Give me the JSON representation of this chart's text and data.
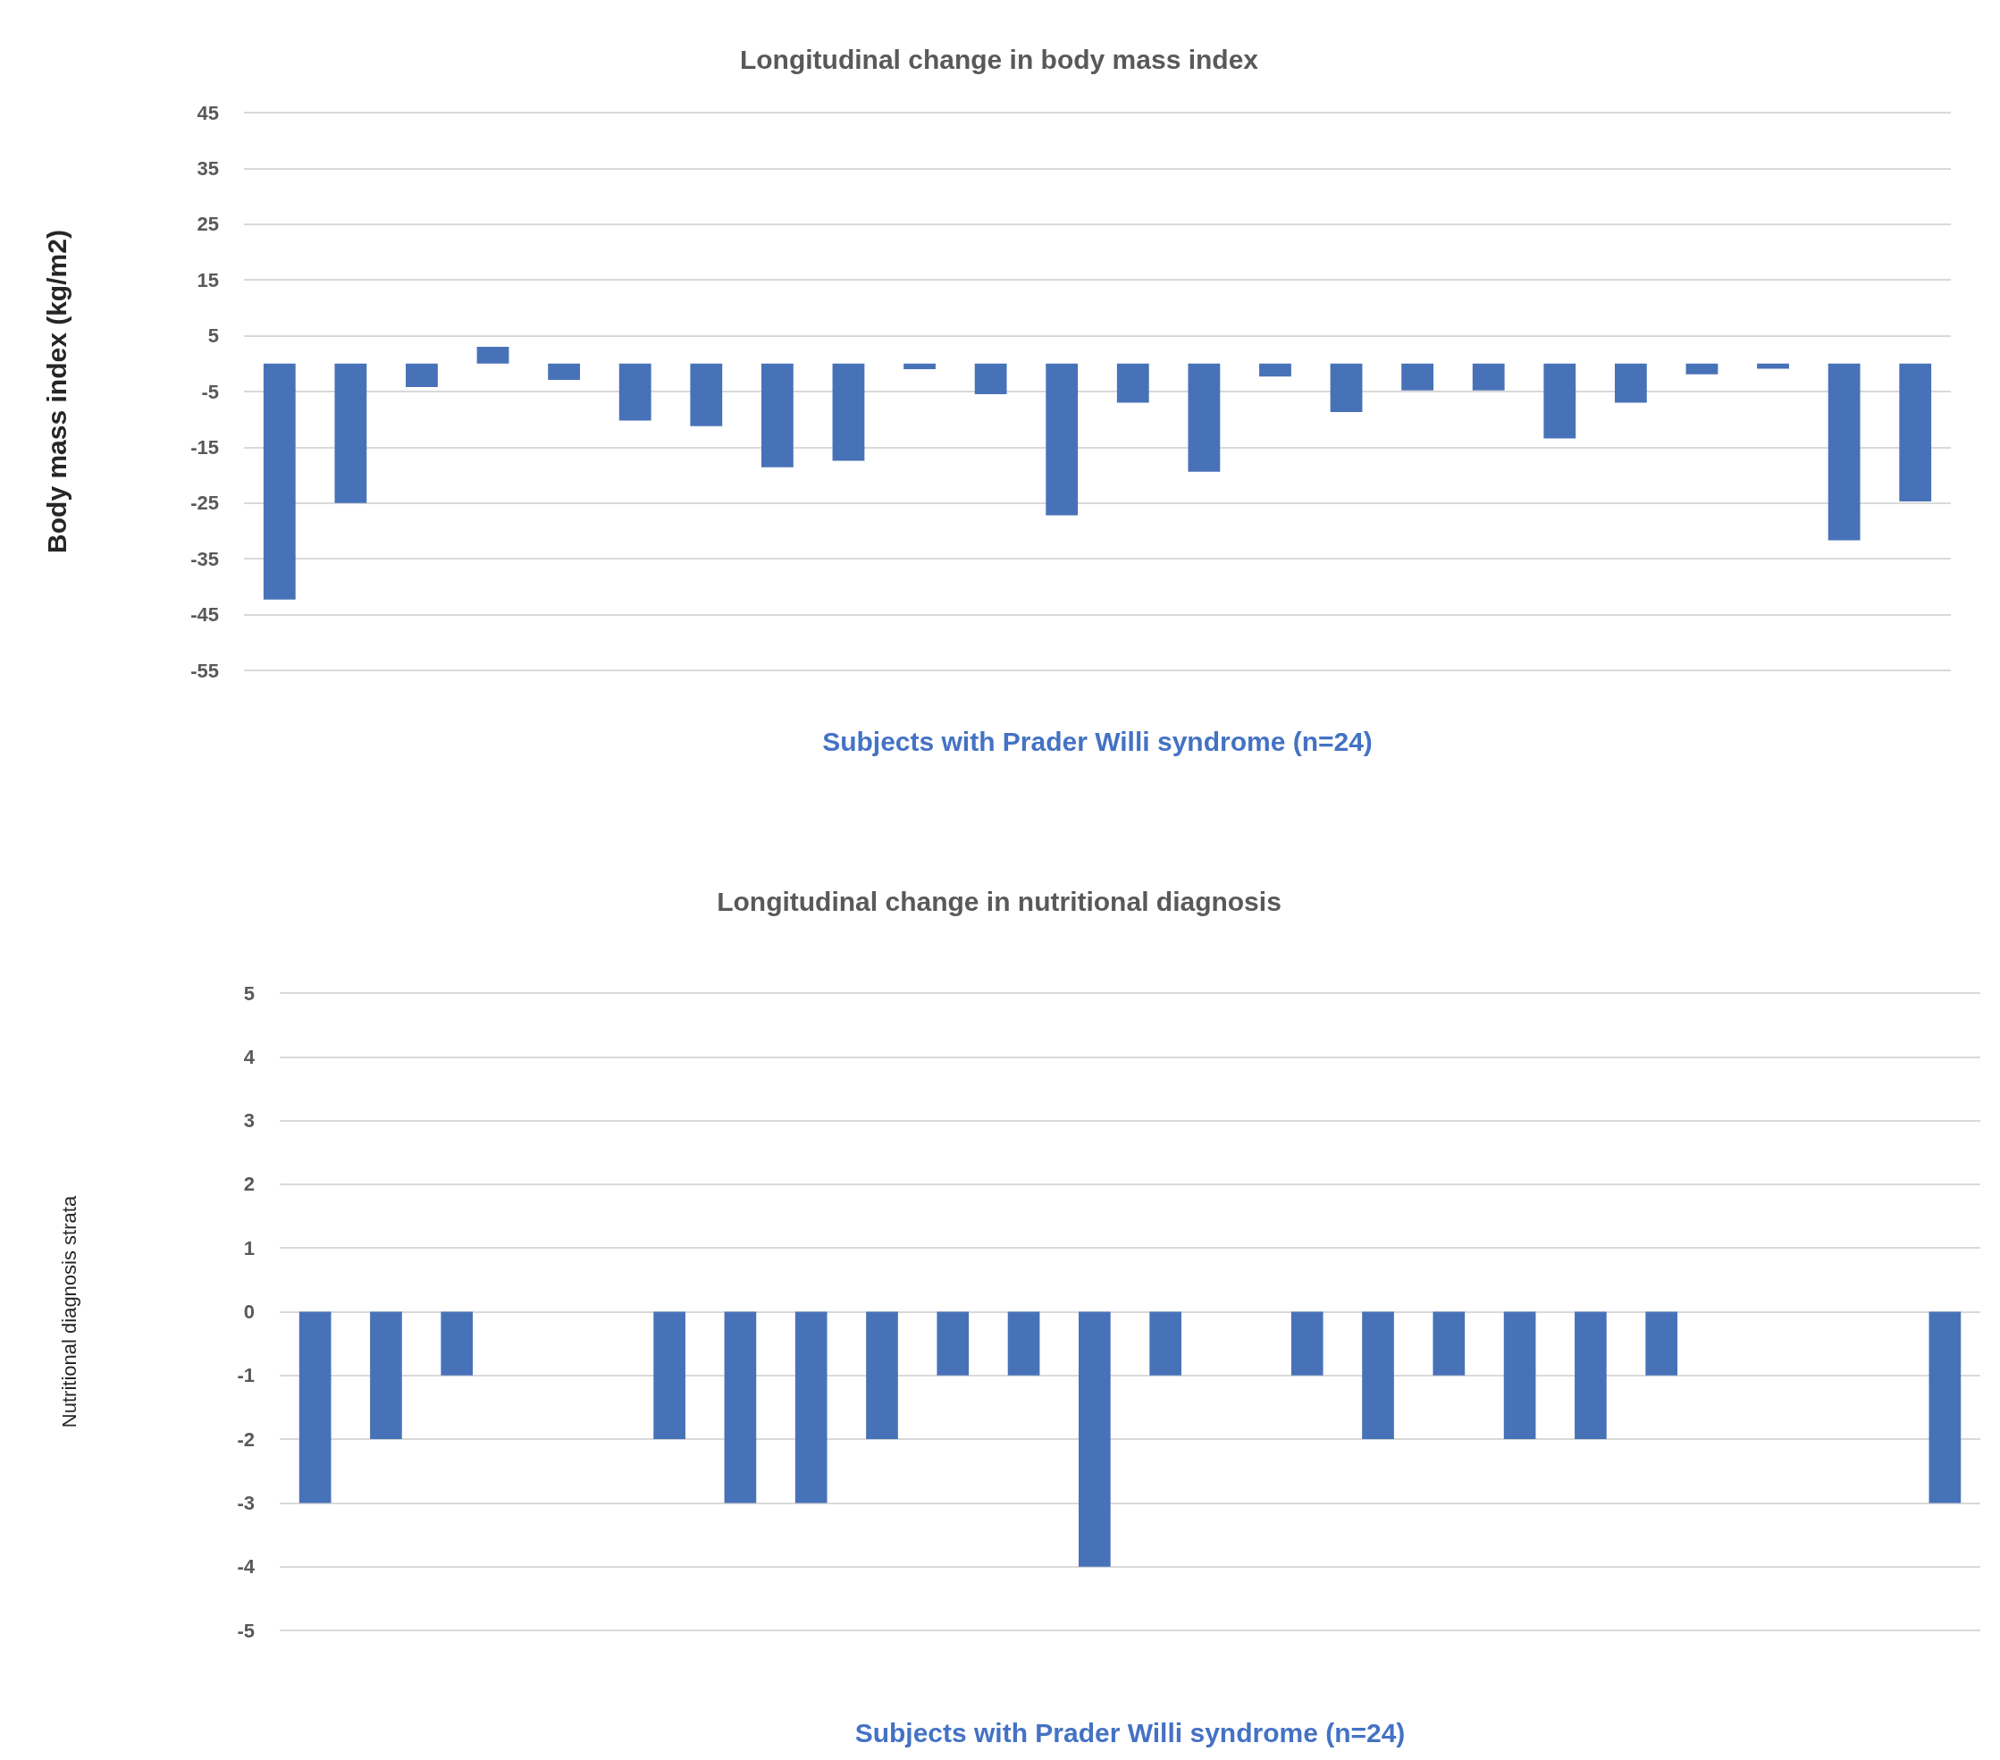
{
  "chart_data": [
    {
      "type": "bar",
      "title": "Longitudinal change in body mass index",
      "xlabel": "Subjects with Prader Willi syndrome (n=24)",
      "ylabel": "Body mass index (kg/m2)",
      "categories": [
        null,
        null,
        null,
        null,
        null,
        null,
        null,
        null,
        null,
        null,
        null,
        null,
        null,
        null,
        null,
        null,
        null,
        null,
        null,
        null,
        null,
        null,
        null,
        null
      ],
      "series": [
        {
          "color": "#4872b8",
          "values": [
            -42.3,
            -25.0,
            -4.2,
            3.0,
            -2.9,
            -10.2,
            -11.2,
            -18.6,
            -17.4,
            -1.0,
            -5.5,
            -27.2,
            -7.0,
            -19.4,
            -2.3,
            -8.7,
            -4.8,
            -4.8,
            -13.4,
            -7.0,
            -1.9,
            -0.9,
            -31.7,
            -24.7
          ]
        }
      ],
      "ylim": [
        -55,
        45
      ],
      "yticks": [
        -55,
        -45,
        -35,
        -25,
        -15,
        -5,
        5,
        15,
        25,
        35,
        45
      ],
      "grid": "y"
    },
    {
      "type": "bar",
      "title": "Longitudinal change in nutritional diagnosis",
      "xlabel": "Subjects with Prader Willi syndrome (n=24)",
      "ylabel": "Nutritional diagnosis strata",
      "categories": [
        null,
        null,
        null,
        null,
        null,
        null,
        null,
        null,
        null,
        null,
        null,
        null,
        null,
        null,
        null,
        null,
        null,
        null,
        null,
        null,
        null,
        null,
        null,
        null
      ],
      "series": [
        {
          "color": "#4872b8",
          "values": [
            -3,
            -2,
            -1,
            0,
            0,
            -2,
            -3,
            -3,
            -2,
            -1,
            -1,
            -4,
            -1,
            0,
            -1,
            -2,
            -1,
            -2,
            -2,
            -1,
            0,
            0,
            0,
            -3
          ]
        }
      ],
      "ylim": [
        -5,
        5
      ],
      "yticks": [
        -5,
        -4,
        -3,
        -2,
        -1,
        0,
        1,
        2,
        3,
        4,
        5
      ],
      "grid": "y"
    }
  ]
}
